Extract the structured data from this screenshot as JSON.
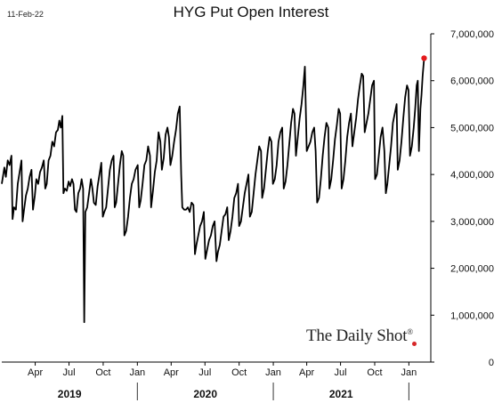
{
  "header": {
    "date_label": "11-Feb-22",
    "title": "HYG Put Open Interest"
  },
  "watermark": {
    "text": "The Daily Shot",
    "mark": "®"
  },
  "colors": {
    "line": "#000000",
    "last_point": "#e41a1c",
    "axis": "#000000"
  },
  "chart_data": {
    "type": "line",
    "title": "HYG Put Open Interest",
    "y_axis": {
      "position": "right",
      "min": 0,
      "max": 7000000,
      "ticks": [
        "7,000,000",
        "6,000,000",
        "5,000,000",
        "4,000,000",
        "3,000,000",
        "2,000,000",
        "1,000,000",
        "0"
      ],
      "tick_values": [
        7000000,
        6000000,
        5000000,
        4000000,
        3000000,
        2000000,
        1000000,
        0
      ]
    },
    "x_axis": {
      "start": "2019-01-01",
      "end": "2022-03-01",
      "month_ticks": [
        {
          "label": "Apr",
          "date": "2019-04-01"
        },
        {
          "label": "Jul",
          "date": "2019-07-01"
        },
        {
          "label": "Oct",
          "date": "2019-10-01"
        },
        {
          "label": "Jan",
          "date": "2020-01-01"
        },
        {
          "label": "Apr",
          "date": "2020-04-01"
        },
        {
          "label": "Jul",
          "date": "2020-07-01"
        },
        {
          "label": "Oct",
          "date": "2020-10-01"
        },
        {
          "label": "Jan",
          "date": "2021-01-01"
        },
        {
          "label": "Apr",
          "date": "2021-04-01"
        },
        {
          "label": "Jul",
          "date": "2021-07-01"
        },
        {
          "label": "Oct",
          "date": "2021-10-01"
        },
        {
          "label": "Jan",
          "date": "2022-01-01"
        }
      ],
      "years": [
        {
          "label": "2019",
          "start": "2019-01-01",
          "end": "2020-01-01"
        },
        {
          "label": "2020",
          "start": "2020-01-01",
          "end": "2021-01-01"
        },
        {
          "label": "2021",
          "start": "2021-01-01",
          "end": "2022-01-01"
        }
      ],
      "year_separators": [
        "2020-01-01",
        "2021-01-01",
        "2022-01-01"
      ]
    },
    "grid": false,
    "last_point": {
      "x": "2022-02-11",
      "y": 6480000
    },
    "series": [
      {
        "points": [
          [
            "2019-01-01",
            3800000
          ],
          [
            "2019-01-08",
            4150000
          ],
          [
            "2019-01-12",
            3950000
          ],
          [
            "2019-01-17",
            4300000
          ],
          [
            "2019-01-22",
            4200000
          ],
          [
            "2019-01-27",
            4400000
          ],
          [
            "2019-01-30",
            3050000
          ],
          [
            "2019-02-03",
            3300000
          ],
          [
            "2019-02-08",
            3250000
          ],
          [
            "2019-02-13",
            3800000
          ],
          [
            "2019-02-18",
            4050000
          ],
          [
            "2019-02-23",
            4300000
          ],
          [
            "2019-02-26",
            3000000
          ],
          [
            "2019-03-02",
            3250000
          ],
          [
            "2019-03-07",
            3550000
          ],
          [
            "2019-03-12",
            3700000
          ],
          [
            "2019-03-17",
            3950000
          ],
          [
            "2019-03-22",
            4100000
          ],
          [
            "2019-03-26",
            3250000
          ],
          [
            "2019-03-31",
            3550000
          ],
          [
            "2019-04-04",
            3900000
          ],
          [
            "2019-04-09",
            3800000
          ],
          [
            "2019-04-14",
            4050000
          ],
          [
            "2019-04-19",
            4150000
          ],
          [
            "2019-04-24",
            4300000
          ],
          [
            "2019-04-28",
            3700000
          ],
          [
            "2019-05-02",
            3800000
          ],
          [
            "2019-05-07",
            4300000
          ],
          [
            "2019-05-12",
            4400000
          ],
          [
            "2019-05-17",
            4700000
          ],
          [
            "2019-05-22",
            4600000
          ],
          [
            "2019-05-27",
            4900000
          ],
          [
            "2019-06-01",
            4950000
          ],
          [
            "2019-06-05",
            5150000
          ],
          [
            "2019-06-09",
            5000000
          ],
          [
            "2019-06-13",
            5250000
          ],
          [
            "2019-06-16",
            3600000
          ],
          [
            "2019-06-20",
            3700000
          ],
          [
            "2019-06-25",
            3650000
          ],
          [
            "2019-06-30",
            3850000
          ],
          [
            "2019-07-04",
            3750000
          ],
          [
            "2019-07-09",
            3900000
          ],
          [
            "2019-07-13",
            3800000
          ],
          [
            "2019-07-17",
            3250000
          ],
          [
            "2019-07-21",
            3200000
          ],
          [
            "2019-07-26",
            3600000
          ],
          [
            "2019-07-31",
            3700000
          ],
          [
            "2019-08-04",
            3900000
          ],
          [
            "2019-08-08",
            3700000
          ],
          [
            "2019-08-11",
            850000
          ],
          [
            "2019-08-14",
            3200000
          ],
          [
            "2019-08-19",
            3300000
          ],
          [
            "2019-08-24",
            3600000
          ],
          [
            "2019-08-29",
            3900000
          ],
          [
            "2019-09-02",
            3700000
          ],
          [
            "2019-09-06",
            3400000
          ],
          [
            "2019-09-11",
            3350000
          ],
          [
            "2019-09-16",
            3750000
          ],
          [
            "2019-09-21",
            4000000
          ],
          [
            "2019-09-26",
            4250000
          ],
          [
            "2019-09-30",
            3100000
          ],
          [
            "2019-10-04",
            3200000
          ],
          [
            "2019-10-09",
            3300000
          ],
          [
            "2019-10-14",
            3700000
          ],
          [
            "2019-10-19",
            4100000
          ],
          [
            "2019-10-24",
            4300000
          ],
          [
            "2019-10-29",
            4400000
          ],
          [
            "2019-11-01",
            3300000
          ],
          [
            "2019-11-05",
            3400000
          ],
          [
            "2019-11-10",
            3800000
          ],
          [
            "2019-11-15",
            4200000
          ],
          [
            "2019-11-20",
            4500000
          ],
          [
            "2019-11-24",
            4400000
          ],
          [
            "2019-11-27",
            2700000
          ],
          [
            "2019-12-02",
            2800000
          ],
          [
            "2019-12-07",
            3100000
          ],
          [
            "2019-12-12",
            3500000
          ],
          [
            "2019-12-17",
            3800000
          ],
          [
            "2019-12-22",
            3900000
          ],
          [
            "2019-12-27",
            4100000
          ],
          [
            "2020-01-02",
            4200000
          ],
          [
            "2020-01-06",
            3300000
          ],
          [
            "2020-01-10",
            3450000
          ],
          [
            "2020-01-15",
            3800000
          ],
          [
            "2020-01-20",
            4200000
          ],
          [
            "2020-01-25",
            4300000
          ],
          [
            "2020-01-30",
            4600000
          ],
          [
            "2020-02-04",
            4400000
          ],
          [
            "2020-02-07",
            3300000
          ],
          [
            "2020-02-12",
            3650000
          ],
          [
            "2020-02-17",
            4050000
          ],
          [
            "2020-02-22",
            4300000
          ],
          [
            "2020-02-27",
            4900000
          ],
          [
            "2020-03-03",
            4700000
          ],
          [
            "2020-03-07",
            4100000
          ],
          [
            "2020-03-12",
            4350000
          ],
          [
            "2020-03-17",
            4850000
          ],
          [
            "2020-03-22",
            5000000
          ],
          [
            "2020-03-26",
            4800000
          ],
          [
            "2020-03-30",
            4200000
          ],
          [
            "2020-04-04",
            4400000
          ],
          [
            "2020-04-09",
            4700000
          ],
          [
            "2020-04-14",
            4950000
          ],
          [
            "2020-04-19",
            5300000
          ],
          [
            "2020-04-24",
            5450000
          ],
          [
            "2020-04-28",
            4000000
          ],
          [
            "2020-05-01",
            3300000
          ],
          [
            "2020-05-06",
            3250000
          ],
          [
            "2020-05-11",
            3250000
          ],
          [
            "2020-05-16",
            3300000
          ],
          [
            "2020-05-21",
            3200000
          ],
          [
            "2020-05-26",
            3400000
          ],
          [
            "2020-05-31",
            3350000
          ],
          [
            "2020-06-04",
            2300000
          ],
          [
            "2020-06-08",
            2500000
          ],
          [
            "2020-06-13",
            2700000
          ],
          [
            "2020-06-18",
            2900000
          ],
          [
            "2020-06-23",
            3000000
          ],
          [
            "2020-06-28",
            3200000
          ],
          [
            "2020-07-02",
            2200000
          ],
          [
            "2020-07-07",
            2400000
          ],
          [
            "2020-07-12",
            2600000
          ],
          [
            "2020-07-17",
            2700000
          ],
          [
            "2020-07-22",
            2900000
          ],
          [
            "2020-07-27",
            3000000
          ],
          [
            "2020-08-01",
            2150000
          ],
          [
            "2020-08-05",
            2350000
          ],
          [
            "2020-08-10",
            2500000
          ],
          [
            "2020-08-15",
            2800000
          ],
          [
            "2020-08-20",
            3100000
          ],
          [
            "2020-08-25",
            3150000
          ],
          [
            "2020-08-30",
            3300000
          ],
          [
            "2020-09-03",
            2600000
          ],
          [
            "2020-09-08",
            2800000
          ],
          [
            "2020-09-13",
            3100000
          ],
          [
            "2020-09-18",
            3500000
          ],
          [
            "2020-09-23",
            3600000
          ],
          [
            "2020-09-28",
            3800000
          ],
          [
            "2020-10-01",
            2900000
          ],
          [
            "2020-10-06",
            3000000
          ],
          [
            "2020-10-11",
            3300000
          ],
          [
            "2020-10-16",
            3600000
          ],
          [
            "2020-10-21",
            3800000
          ],
          [
            "2020-10-26",
            4000000
          ],
          [
            "2020-10-30",
            3100000
          ],
          [
            "2020-11-04",
            3200000
          ],
          [
            "2020-11-09",
            3600000
          ],
          [
            "2020-11-14",
            4000000
          ],
          [
            "2020-11-19",
            4300000
          ],
          [
            "2020-11-24",
            4600000
          ],
          [
            "2020-11-29",
            4500000
          ],
          [
            "2020-12-02",
            3500000
          ],
          [
            "2020-12-07",
            3700000
          ],
          [
            "2020-12-12",
            4100000
          ],
          [
            "2020-12-17",
            4500000
          ],
          [
            "2020-12-22",
            4800000
          ],
          [
            "2020-12-27",
            4700000
          ],
          [
            "2020-12-31",
            3800000
          ],
          [
            "2021-01-05",
            3900000
          ],
          [
            "2021-01-10",
            4200000
          ],
          [
            "2021-01-15",
            4700000
          ],
          [
            "2021-01-20",
            4900000
          ],
          [
            "2021-01-25",
            5000000
          ],
          [
            "2021-01-29",
            3700000
          ],
          [
            "2021-02-03",
            3850000
          ],
          [
            "2021-02-08",
            4200000
          ],
          [
            "2021-02-13",
            4650000
          ],
          [
            "2021-02-18",
            5100000
          ],
          [
            "2021-02-23",
            5400000
          ],
          [
            "2021-02-27",
            5300000
          ],
          [
            "2021-03-03",
            4400000
          ],
          [
            "2021-03-08",
            4800000
          ],
          [
            "2021-03-13",
            5200000
          ],
          [
            "2021-03-18",
            5500000
          ],
          [
            "2021-03-23",
            5900000
          ],
          [
            "2021-03-27",
            6300000
          ],
          [
            "2021-04-01",
            4500000
          ],
          [
            "2021-04-06",
            4600000
          ],
          [
            "2021-04-11",
            4700000
          ],
          [
            "2021-04-16",
            4900000
          ],
          [
            "2021-04-21",
            5000000
          ],
          [
            "2021-04-25",
            4500000
          ],
          [
            "2021-04-29",
            3400000
          ],
          [
            "2021-05-04",
            3500000
          ],
          [
            "2021-05-09",
            3900000
          ],
          [
            "2021-05-14",
            4400000
          ],
          [
            "2021-05-19",
            4800000
          ],
          [
            "2021-05-24",
            5100000
          ],
          [
            "2021-05-29",
            5000000
          ],
          [
            "2021-06-01",
            3700000
          ],
          [
            "2021-06-06",
            3900000
          ],
          [
            "2021-06-11",
            4300000
          ],
          [
            "2021-06-16",
            4750000
          ],
          [
            "2021-06-21",
            5050000
          ],
          [
            "2021-06-26",
            5400000
          ],
          [
            "2021-06-30",
            5300000
          ],
          [
            "2021-07-04",
            3700000
          ],
          [
            "2021-07-09",
            3900000
          ],
          [
            "2021-07-14",
            4300000
          ],
          [
            "2021-07-19",
            4800000
          ],
          [
            "2021-07-24",
            5100000
          ],
          [
            "2021-07-29",
            5300000
          ],
          [
            "2021-08-02",
            4600000
          ],
          [
            "2021-08-07",
            4900000
          ],
          [
            "2021-08-12",
            5200000
          ],
          [
            "2021-08-17",
            5600000
          ],
          [
            "2021-08-22",
            5900000
          ],
          [
            "2021-08-27",
            6150000
          ],
          [
            "2021-08-31",
            6100000
          ],
          [
            "2021-09-04",
            4900000
          ],
          [
            "2021-09-09",
            5100000
          ],
          [
            "2021-09-14",
            5300000
          ],
          [
            "2021-09-19",
            5600000
          ],
          [
            "2021-09-24",
            5900000
          ],
          [
            "2021-09-29",
            6000000
          ],
          [
            "2021-10-02",
            3900000
          ],
          [
            "2021-10-07",
            4000000
          ],
          [
            "2021-10-12",
            4400000
          ],
          [
            "2021-10-17",
            4800000
          ],
          [
            "2021-10-22",
            5000000
          ],
          [
            "2021-10-27",
            4500000
          ],
          [
            "2021-10-31",
            3600000
          ],
          [
            "2021-11-04",
            3800000
          ],
          [
            "2021-11-09",
            4200000
          ],
          [
            "2021-11-14",
            4600000
          ],
          [
            "2021-11-19",
            5100000
          ],
          [
            "2021-11-24",
            5300000
          ],
          [
            "2021-11-29",
            5500000
          ],
          [
            "2021-12-02",
            4100000
          ],
          [
            "2021-12-07",
            4300000
          ],
          [
            "2021-12-12",
            4700000
          ],
          [
            "2021-12-17",
            5200000
          ],
          [
            "2021-12-22",
            5650000
          ],
          [
            "2021-12-27",
            5900000
          ],
          [
            "2021-12-31",
            5800000
          ],
          [
            "2022-01-04",
            4400000
          ],
          [
            "2022-01-09",
            4600000
          ],
          [
            "2022-01-14",
            5000000
          ],
          [
            "2022-01-18",
            5400000
          ],
          [
            "2022-01-22",
            5900000
          ],
          [
            "2022-01-25",
            6000000
          ],
          [
            "2022-01-28",
            4500000
          ],
          [
            "2022-02-01",
            5400000
          ],
          [
            "2022-02-04",
            5700000
          ],
          [
            "2022-02-07",
            6100000
          ],
          [
            "2022-02-11",
            6480000
          ]
        ]
      }
    ]
  }
}
